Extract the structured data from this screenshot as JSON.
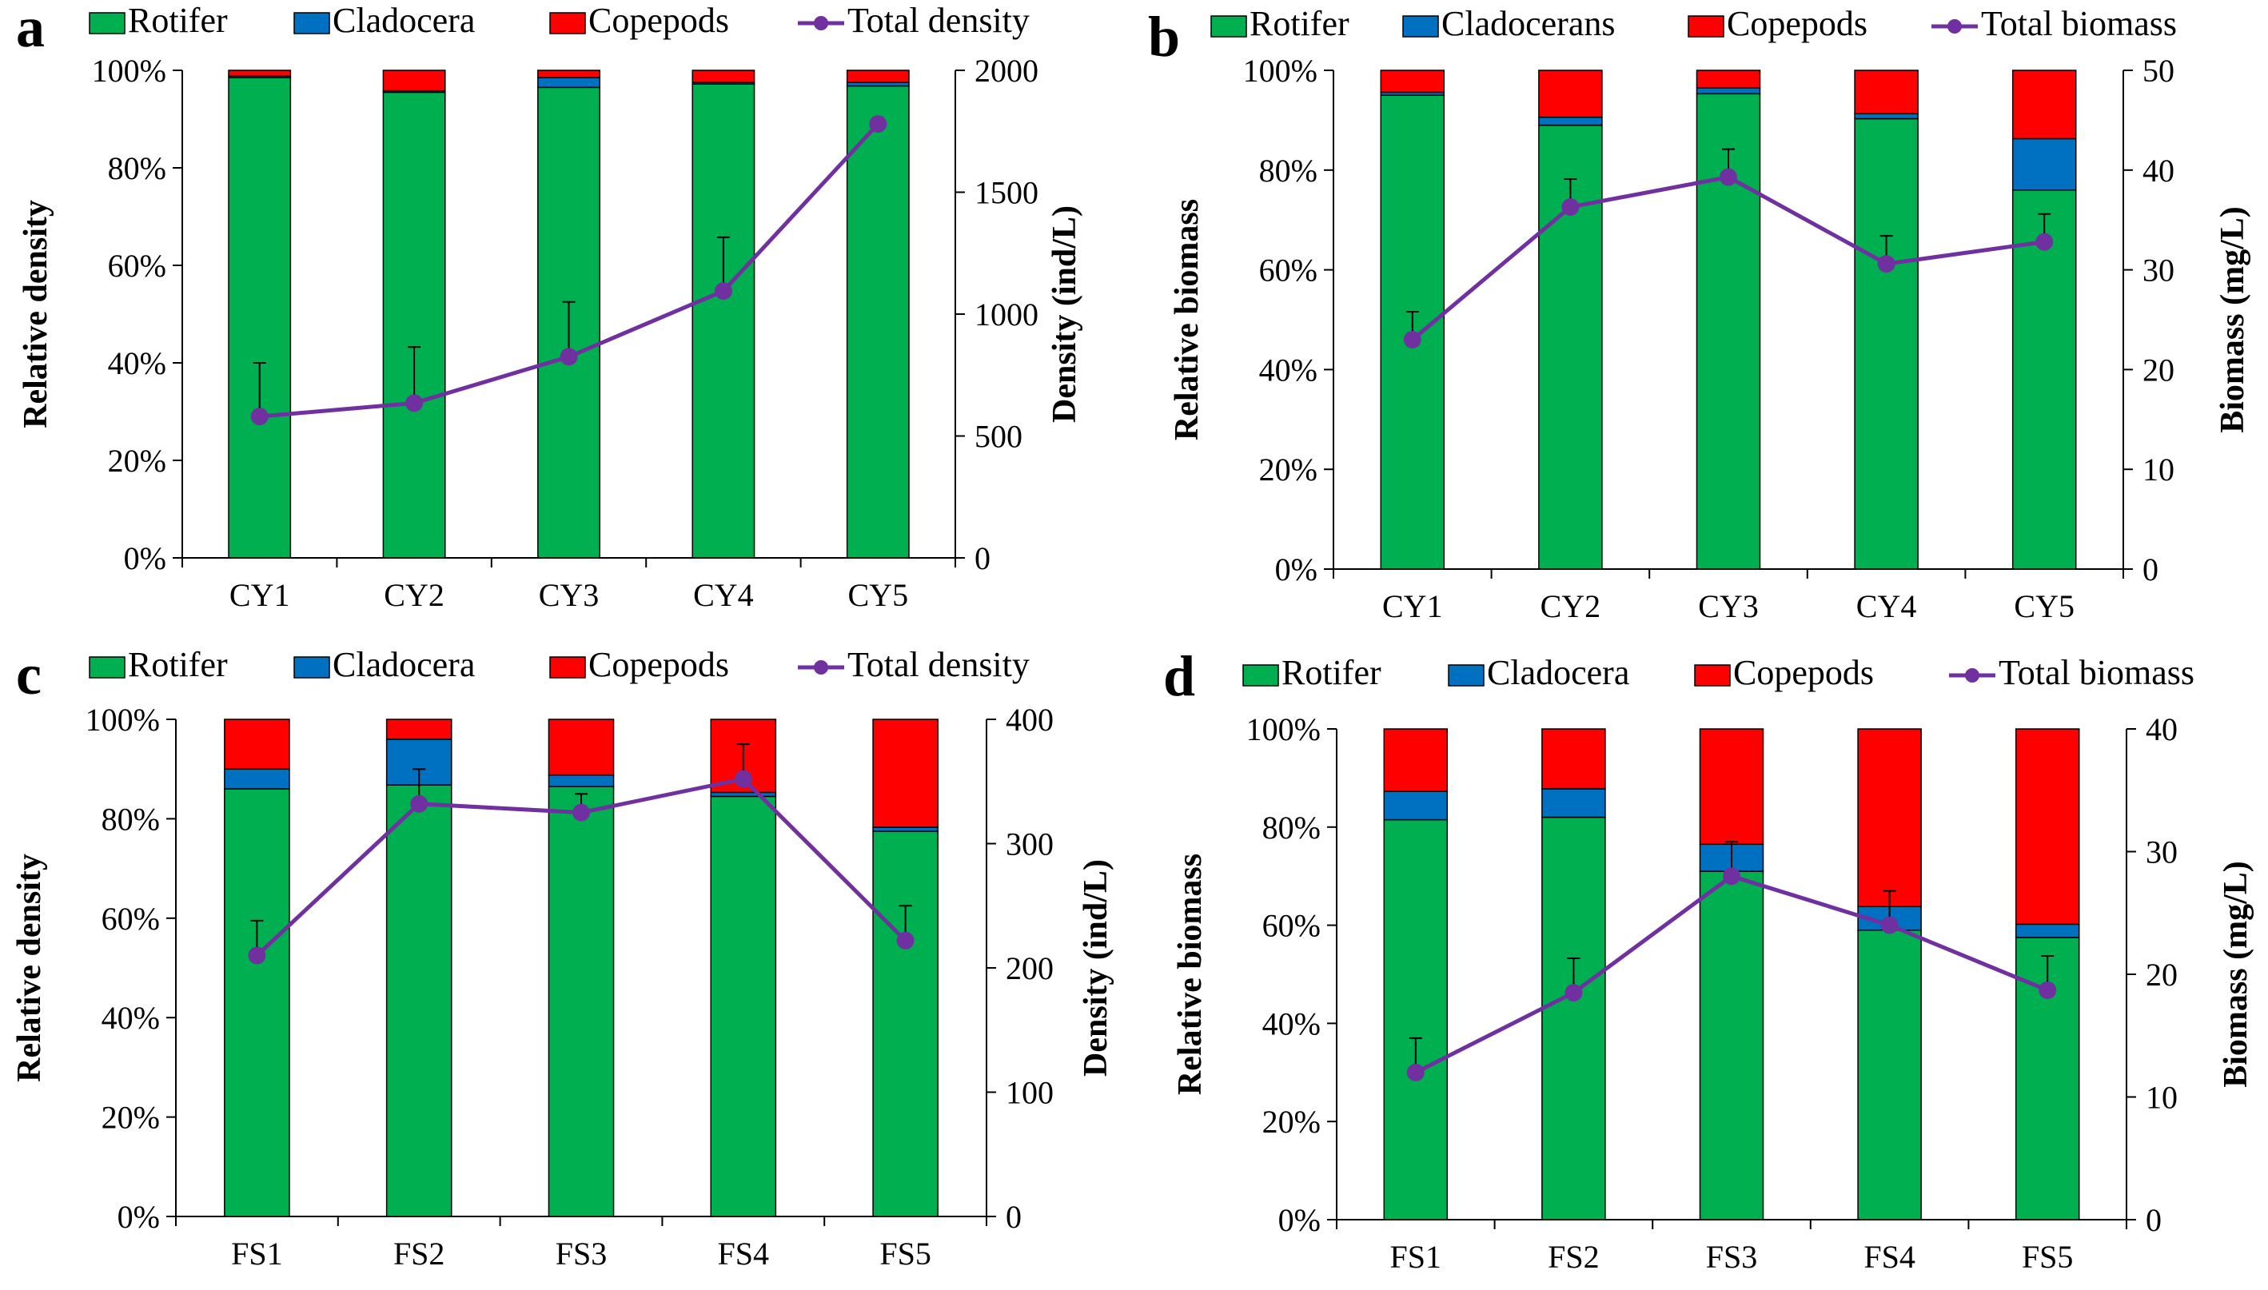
{
  "colors": {
    "rotifer": "#00b050",
    "cladocera": "#0070c0",
    "copepods": "#ff0000",
    "total": "#7030a0"
  },
  "chart_data": [
    {
      "panel_label": "a",
      "type": "bar",
      "stacked": true,
      "categories": [
        "CY1",
        "CY2",
        "CY3",
        "CY4",
        "CY5"
      ],
      "legend": [
        "Rotifer",
        "Cladocera",
        "Copepods",
        "Total density"
      ],
      "ylabel": "Relative density",
      "y2label": "Density (ind/L)",
      "yticks": [
        "0%",
        "20%",
        "40%",
        "60%",
        "80%",
        "100%"
      ],
      "y2ticks": [
        "0",
        "500",
        "1000",
        "1500",
        "2000"
      ],
      "ylim": [
        0,
        100
      ],
      "y2lim": [
        0,
        2000
      ],
      "series": [
        {
          "name": "Rotifer",
          "values": [
            98.5,
            95.5,
            96.5,
            97.2,
            96.8
          ]
        },
        {
          "name": "Cladocera",
          "values": [
            0.3,
            0.3,
            2.0,
            0.3,
            0.7
          ]
        },
        {
          "name": "Copepods",
          "values": [
            1.2,
            4.2,
            1.5,
            2.5,
            2.5
          ]
        }
      ],
      "line": {
        "name": "Total density",
        "values": [
          580,
          635,
          825,
          1095,
          1780
        ],
        "errors": [
          220,
          230,
          225,
          220,
          0
        ]
      }
    },
    {
      "panel_label": "b",
      "type": "bar",
      "stacked": true,
      "categories": [
        "CY1",
        "CY2",
        "CY3",
        "CY4",
        "CY5"
      ],
      "legend": [
        "Rotifer",
        "Cladocerans",
        "Copepods",
        "Total biomass"
      ],
      "ylabel": "Relative biomass",
      "y2label": "Biomass (mg/L)",
      "yticks": [
        "0%",
        "20%",
        "40%",
        "60%",
        "80%",
        "100%"
      ],
      "y2ticks": [
        "0",
        "10",
        "20",
        "30",
        "40",
        "50"
      ],
      "ylim": [
        0,
        100
      ],
      "y2lim": [
        0,
        50
      ],
      "series": [
        {
          "name": "Rotifer",
          "values": [
            95.0,
            89.0,
            95.3,
            90.3,
            76.0
          ]
        },
        {
          "name": "Cladocerans",
          "values": [
            0.6,
            1.6,
            1.2,
            1.0,
            10.3
          ]
        },
        {
          "name": "Copepods",
          "values": [
            4.4,
            9.4,
            3.5,
            8.7,
            13.7
          ]
        }
      ],
      "line": {
        "name": "Total biomass",
        "values": [
          23,
          36.3,
          39.3,
          30.6,
          32.8
        ],
        "errors": [
          2.8,
          2.8,
          2.8,
          2.8,
          2.8
        ]
      }
    },
    {
      "panel_label": "c",
      "type": "bar",
      "stacked": true,
      "categories": [
        "FS1",
        "FS2",
        "FS3",
        "FS4",
        "FS5"
      ],
      "legend": [
        "Rotifer",
        "Cladocera",
        "Copepods",
        "Total density"
      ],
      "ylabel": "Relative density",
      "y2label": "Density (ind/L)",
      "yticks": [
        "0%",
        "20%",
        "40%",
        "60%",
        "80%",
        "100%"
      ],
      "y2ticks": [
        "0",
        "100",
        "200",
        "300",
        "400"
      ],
      "ylim": [
        0,
        100
      ],
      "y2lim": [
        0,
        400
      ],
      "series": [
        {
          "name": "Rotifer",
          "values": [
            86.0,
            86.8,
            86.5,
            84.5,
            77.5
          ]
        },
        {
          "name": "Cladocera",
          "values": [
            4.0,
            9.2,
            2.3,
            0.8,
            0.8
          ]
        },
        {
          "name": "Copepods",
          "values": [
            10.0,
            4.0,
            11.2,
            14.7,
            21.7
          ]
        }
      ],
      "line": {
        "name": "Total density",
        "values": [
          210,
          332,
          325,
          352,
          222
        ],
        "errors": [
          28,
          28,
          15,
          28,
          28
        ]
      }
    },
    {
      "panel_label": "d",
      "type": "bar",
      "stacked": true,
      "categories": [
        "FS1",
        "FS2",
        "FS3",
        "FS4",
        "FS5"
      ],
      "legend": [
        "Rotifer",
        "Cladocera",
        "Copepods",
        "Total biomass"
      ],
      "ylabel": "Relative biomass",
      "y2label": "Biomass (mg/L)",
      "yticks": [
        "0%",
        "20%",
        "40%",
        "60%",
        "80%",
        "100%"
      ],
      "y2ticks": [
        "0",
        "10",
        "20",
        "30",
        "40"
      ],
      "ylim": [
        0,
        100
      ],
      "y2lim": [
        0,
        40
      ],
      "series": [
        {
          "name": "Rotifer",
          "values": [
            81.5,
            82.0,
            71.0,
            59.0,
            57.5
          ]
        },
        {
          "name": "Cladocera",
          "values": [
            5.8,
            5.8,
            5.5,
            4.8,
            2.7
          ]
        },
        {
          "name": "Copepods",
          "values": [
            12.7,
            12.2,
            23.5,
            36.2,
            39.8
          ]
        }
      ],
      "line": {
        "name": "Total biomass",
        "values": [
          12,
          18.5,
          28,
          24,
          18.7
        ],
        "errors": [
          2.8,
          2.8,
          2.8,
          2.8,
          2.8
        ]
      }
    }
  ]
}
